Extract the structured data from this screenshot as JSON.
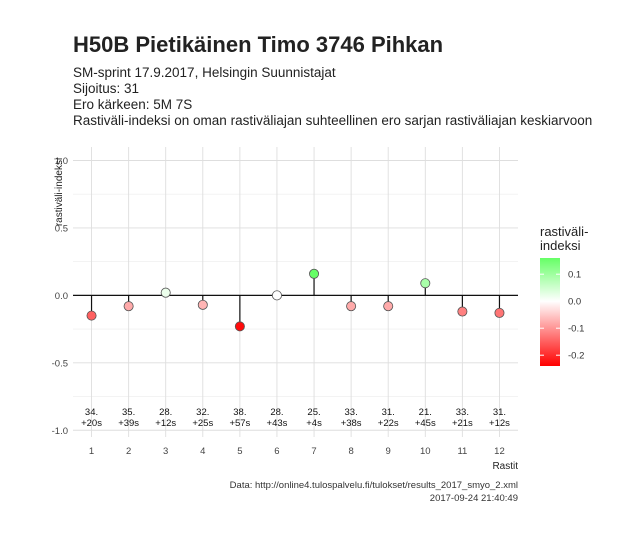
{
  "title": "H50B Pietikäinen Timo 3746 Pihkan",
  "subtitle_lines": [
    "SM-sprint 17.9.2017, Helsingin Suunnistajat",
    "Sijoitus: 31",
    "Ero kärkeen: 5M 7S",
    "Rastiväli-indeksi on oman rastiväliajan suhteellinen ero sarjan rastiväliajan keskiarvoon"
  ],
  "caption": {
    "source": "Data: http://online4.tulospalvelu.fi/tulokset/results_2017_smyo_2.xml",
    "timestamp": "2017-09-24 21:40:49"
  },
  "legend": {
    "title_line1": "rastiväli-",
    "title_line2": "indeksi",
    "ticks": [
      0.1,
      0.0,
      -0.1,
      -0.2
    ],
    "tick_labels": [
      "0.1",
      "0.0",
      "-0.1",
      "-0.2"
    ],
    "range": [
      -0.24,
      0.16
    ]
  },
  "colors": {
    "low": "#ff0000",
    "mid": "#ffffff",
    "high": "#66ff66",
    "grid": "#dedede",
    "axis_line": "#111111"
  },
  "chart_data": {
    "type": "lollipop",
    "xlabel": "Rastit",
    "ylabel": "rastiväli-indeksi",
    "ylim": [
      -1.05,
      1.1
    ],
    "yticks": [
      1.0,
      0.5,
      0.0,
      -0.5,
      -1.0
    ],
    "ytick_labels": [
      "1.0",
      "0.5",
      "0.0",
      "-0.5",
      "-1.0"
    ],
    "categories": [
      "1",
      "2",
      "3",
      "4",
      "5",
      "6",
      "7",
      "8",
      "9",
      "10",
      "11",
      "12"
    ],
    "values": [
      -0.15,
      -0.08,
      0.02,
      -0.07,
      -0.23,
      0.0,
      0.16,
      -0.08,
      -0.08,
      0.09,
      -0.12,
      -0.13
    ],
    "rank_labels": [
      "34.",
      "35.",
      "28.",
      "32.",
      "38.",
      "28.",
      "25.",
      "33.",
      "31.",
      "21.",
      "33.",
      "31."
    ],
    "time_labels": [
      "+20s",
      "+39s",
      "+12s",
      "+25s",
      "+57s",
      "+43s",
      "+4s",
      "+38s",
      "+22s",
      "+45s",
      "+21s",
      "+12s"
    ],
    "grid": true
  }
}
